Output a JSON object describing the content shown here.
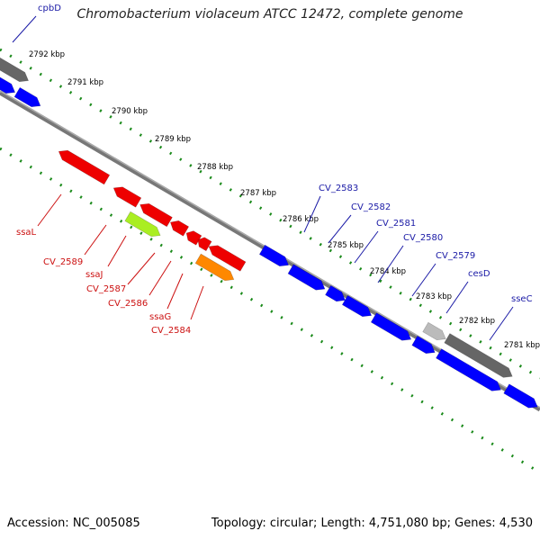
{
  "title": "Chromobacterium violaceum ATCC 12472, complete genome",
  "footer": {
    "accession": "Accession: NC_005085",
    "topology": "Topology: circular; Length: 4,751,080 bp; Genes: 4,530"
  },
  "kbp_ticks": [
    "2792 kbp",
    "2791 kbp",
    "2790 kbp",
    "2789 kbp",
    "2788 kbp",
    "2787 kbp",
    "2786 kbp",
    "2785 kbp",
    "2784 kbp",
    "2783 kbp",
    "2782 kbp",
    "2781 kbp"
  ],
  "forward_labels": [
    "cpbD",
    "CV_2583",
    "CV_2582",
    "CV_2581",
    "CV_2580",
    "CV_2579",
    "cesD",
    "sseC"
  ],
  "reverse_labels": [
    "ssaL",
    "CV_2589",
    "ssaJ",
    "CV_2587",
    "CV_2586",
    "ssaG",
    "CV_2584"
  ],
  "colors": {
    "forward_gene": "#0000ff",
    "reverse_gene": "#ee0000",
    "highlight_green": "#aaee22",
    "highlight_orange": "#ff8800",
    "dark_gene": "#666666",
    "light_gene": "#bbbbbb",
    "backbone": "#808080",
    "tick_green": "#1a8a1a",
    "label_blue": "#1a1aa6",
    "label_red": "#cc1111"
  }
}
